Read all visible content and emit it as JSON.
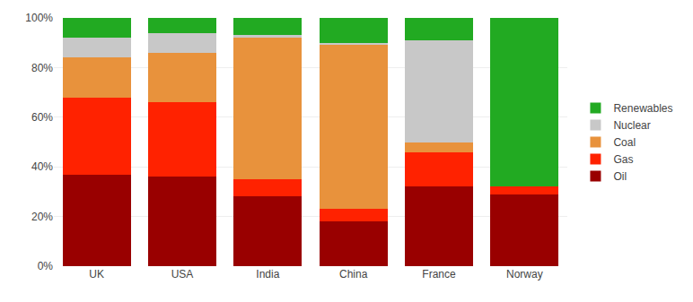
{
  "chart_data": {
    "type": "bar",
    "stacked": true,
    "categories": [
      "UK",
      "USA",
      "India",
      "China",
      "France",
      "Norway"
    ],
    "series": [
      {
        "name": "Oil",
        "color": "#990000",
        "values": [
          37,
          36,
          28,
          18,
          32,
          29
        ]
      },
      {
        "name": "Gas",
        "color": "#ff2200",
        "values": [
          31,
          30,
          7,
          5,
          14,
          3
        ]
      },
      {
        "name": "Coal",
        "color": "#e8923c",
        "values": [
          16,
          20,
          57,
          66,
          4,
          0
        ]
      },
      {
        "name": "Nuclear",
        "color": "#c8c8c8",
        "values": [
          8,
          8,
          1,
          1,
          41,
          0
        ]
      },
      {
        "name": "Renewables",
        "color": "#22aa22",
        "values": [
          8,
          6,
          7,
          10,
          9,
          68
        ]
      }
    ],
    "ylim": [
      0,
      100
    ],
    "yticks": [
      {
        "value": 0,
        "label": "0%"
      },
      {
        "value": 20,
        "label": "20%"
      },
      {
        "value": 40,
        "label": "40%"
      },
      {
        "value": 60,
        "label": "60%"
      },
      {
        "value": 80,
        "label": "80%"
      },
      {
        "value": 100,
        "label": "100%"
      }
    ],
    "grid": true,
    "legend": "right"
  }
}
